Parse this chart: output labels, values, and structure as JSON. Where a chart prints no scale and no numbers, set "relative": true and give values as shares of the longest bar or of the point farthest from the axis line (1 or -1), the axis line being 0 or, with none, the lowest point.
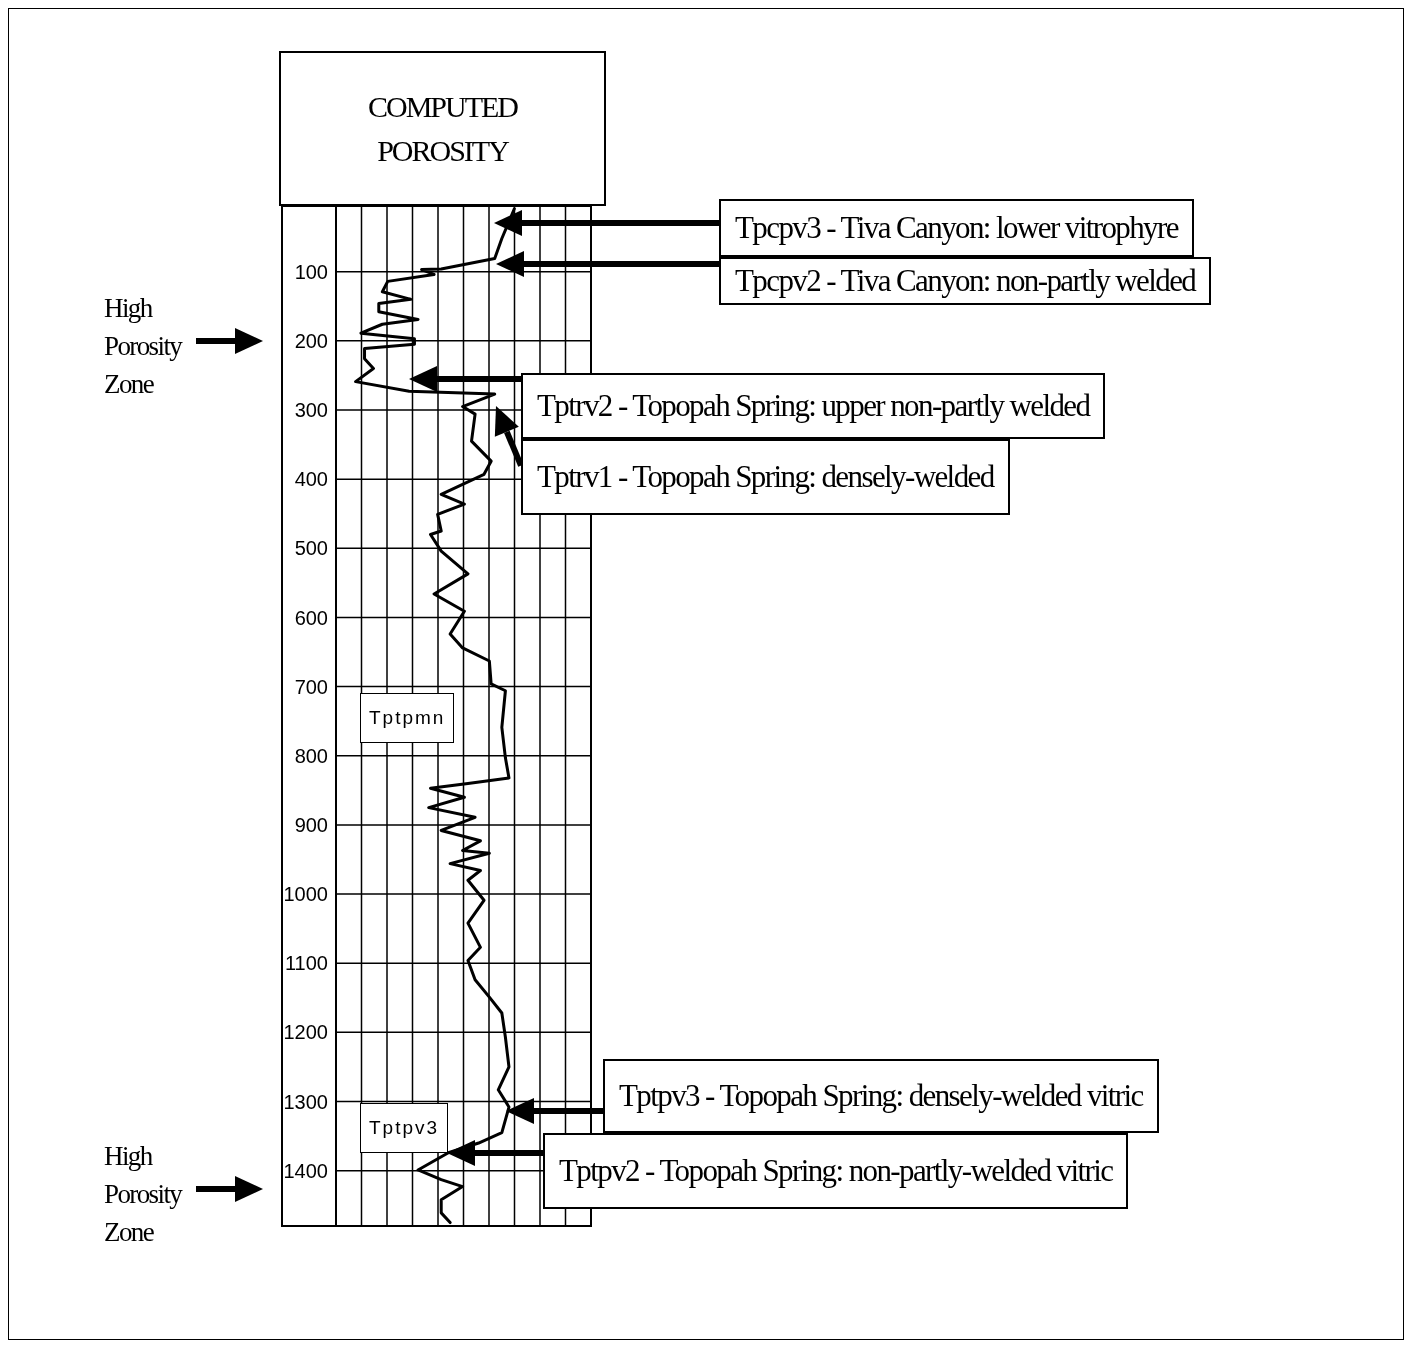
{
  "chart_data": {
    "type": "line",
    "orientation": "horizontal",
    "relative": true,
    "title": "COMPUTED POROSITY",
    "x": [
      9,
      52,
      81,
      96,
      97,
      104,
      114,
      129,
      140,
      146,
      158,
      169,
      176,
      189,
      197,
      205,
      211,
      226,
      240,
      259,
      273,
      277,
      295,
      306,
      345,
      374,
      393,
      422,
      436,
      451,
      475,
      480,
      504,
      537,
      566,
      591,
      624,
      644,
      663,
      696,
      706,
      759,
      803,
      832,
      840,
      847,
      860,
      875,
      889,
      908,
      923,
      937,
      941,
      956,
      966,
      980,
      1009,
      1042,
      1077,
      1096,
      1124,
      1149,
      1172,
      1207,
      1250,
      1283,
      1308,
      1345,
      1360,
      1374,
      1399,
      1413,
      1423,
      1442,
      1461,
      1475
    ],
    "series": [
      {
        "color": "#000000",
        "values": [
          1.0,
          0.93,
          0.89,
          0.59,
          0.48,
          0.55,
          0.29,
          0.26,
          0.42,
          0.24,
          0.24,
          0.46,
          0.26,
          0.14,
          0.44,
          0.44,
          0.16,
          0.16,
          0.21,
          0.11,
          0.41,
          0.89,
          0.71,
          0.78,
          0.76,
          0.87,
          0.83,
          0.59,
          0.72,
          0.57,
          0.59,
          0.53,
          0.59,
          0.74,
          0.55,
          0.72,
          0.64,
          0.71,
          0.86,
          0.87,
          0.95,
          0.93,
          0.95,
          0.97,
          0.74,
          0.53,
          0.72,
          0.52,
          0.78,
          0.59,
          0.81,
          0.71,
          0.86,
          0.64,
          0.81,
          0.74,
          0.83,
          0.74,
          0.81,
          0.74,
          0.78,
          0.86,
          0.93,
          0.95,
          0.97,
          0.91,
          0.97,
          0.93,
          0.8,
          0.63,
          0.46,
          0.59,
          0.71,
          0.59,
          0.59,
          0.64
        ]
      }
    ],
    "ylim": [
      1480,
      5
    ],
    "yticks": [
      100,
      200,
      300,
      400,
      500,
      600,
      700,
      800,
      900,
      1000,
      1100,
      1200,
      1300,
      1400
    ],
    "grid": true,
    "marker": "none",
    "line_style": "solid",
    "annotations": [
      "Tpcpv3 - Tiva Canyon: lower vitrophyre",
      "Tpcpv2 - Tiva Canyon: non-partly welded",
      "Tptrv2 - Topopah Spring: upper non-partly welded",
      "Tptrv1 - Topopah Spring: densely-welded",
      "Tptpv3 - Topopah Spring: densely-welded vitric",
      "Tptpv2 - Topopah Spring: non-partly-welded vitric",
      "Tptpmn",
      "Tptpv3",
      "High Porosity Zone",
      "High Porosity Zone"
    ]
  }
}
